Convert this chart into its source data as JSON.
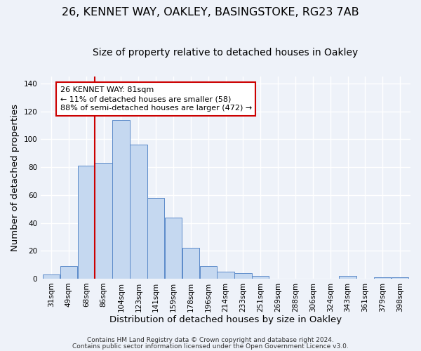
{
  "title": "26, KENNET WAY, OAKLEY, BASINGSTOKE, RG23 7AB",
  "subtitle": "Size of property relative to detached houses in Oakley",
  "xlabel": "Distribution of detached houses by size in Oakley",
  "ylabel": "Number of detached properties",
  "bin_labels": [
    "31sqm",
    "49sqm",
    "68sqm",
    "86sqm",
    "104sqm",
    "123sqm",
    "141sqm",
    "159sqm",
    "178sqm",
    "196sqm",
    "214sqm",
    "233sqm",
    "251sqm",
    "269sqm",
    "288sqm",
    "306sqm",
    "324sqm",
    "343sqm",
    "361sqm",
    "379sqm",
    "398sqm"
  ],
  "bin_values": [
    3,
    9,
    81,
    83,
    114,
    96,
    58,
    44,
    22,
    9,
    5,
    4,
    2,
    0,
    0,
    0,
    0,
    2,
    0,
    1,
    1
  ],
  "bar_color": "#c5d8f0",
  "bar_edge_color": "#5b8ac9",
  "vline_color": "#cc0000",
  "annotation_text": "26 KENNET WAY: 81sqm\n← 11% of detached houses are smaller (58)\n88% of semi-detached houses are larger (472) →",
  "annotation_box_color": "#ffffff",
  "annotation_box_edge": "#cc0000",
  "ylim": [
    0,
    145
  ],
  "yticks": [
    0,
    20,
    40,
    60,
    80,
    100,
    120,
    140
  ],
  "footer1": "Contains HM Land Registry data © Crown copyright and database right 2024.",
  "footer2": "Contains public sector information licensed under the Open Government Licence v3.0.",
  "background_color": "#eef2f9",
  "grid_color": "#ffffff",
  "title_fontsize": 11.5,
  "subtitle_fontsize": 10,
  "axis_label_fontsize": 9.5,
  "tick_fontsize": 7.5,
  "annotation_fontsize": 8,
  "footer_fontsize": 6.5
}
